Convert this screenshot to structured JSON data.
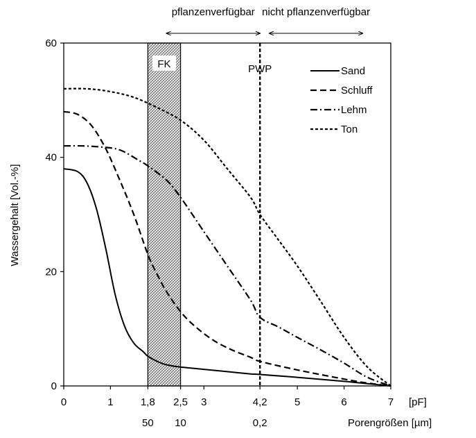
{
  "chart_data": {
    "type": "line",
    "xlabel": "[pF]",
    "x2label": "Porengrößen [µm]",
    "ylabel": "Wassergehalt [Vol.-%]",
    "xlim": [
      0,
      7
    ],
    "ylim": [
      0,
      60
    ],
    "x_ticks": [
      "0",
      "1",
      "1,8",
      "2,5",
      "3",
      "4,2",
      "5",
      "6",
      "7"
    ],
    "x_tick_values": [
      0,
      1,
      1.8,
      2.5,
      3,
      4.2,
      5,
      6,
      7
    ],
    "y_ticks": [
      "0",
      "20",
      "40",
      "60"
    ],
    "y_tick_values": [
      0,
      20,
      40,
      60
    ],
    "pore_ticks": [
      {
        "at": 1.8,
        "label": "50"
      },
      {
        "at": 2.5,
        "label": "10"
      },
      {
        "at": 4.2,
        "label": "0,2"
      }
    ],
    "fk_band": {
      "from": 1.8,
      "to": 2.5,
      "label": "FK"
    },
    "pwp_line": {
      "at": 4.2,
      "label": "PWP"
    },
    "arrows": [
      {
        "from": 2.2,
        "to": 4.2,
        "label": "pflanzenverfügbar"
      },
      {
        "from": 4.4,
        "to": 6.4,
        "label": "nicht pflanzenverfügbar"
      }
    ],
    "legend_position": "top-right",
    "series": [
      {
        "name": "Sand",
        "style": "solid",
        "x": [
          0,
          0.3,
          0.5,
          0.7,
          0.9,
          1.1,
          1.3,
          1.5,
          1.7,
          1.8,
          2.0,
          2.2,
          2.5,
          3.0,
          3.5,
          4.0,
          4.2,
          5.0,
          6.0,
          6.5,
          7.0
        ],
        "y": [
          38,
          37.5,
          35.5,
          31,
          24,
          16,
          10.5,
          7.5,
          6,
          5.2,
          4.3,
          3.7,
          3.3,
          2.9,
          2.5,
          2.1,
          2.0,
          1.5,
          0.8,
          0.4,
          0
        ]
      },
      {
        "name": "Schluff",
        "style": "dashed",
        "x": [
          0,
          0.3,
          0.6,
          0.9,
          1.2,
          1.5,
          1.8,
          2.0,
          2.2,
          2.5,
          2.8,
          3.2,
          3.6,
          4.0,
          4.2,
          5.0,
          6.0,
          6.5,
          7.0
        ],
        "y": [
          48,
          47.5,
          45.5,
          41.5,
          36,
          30,
          23,
          19.5,
          16.5,
          13,
          10.5,
          8,
          6.3,
          5,
          4.3,
          2.8,
          1.2,
          0.5,
          0
        ]
      },
      {
        "name": "Lehm",
        "style": "dashdot",
        "x": [
          0,
          0.4,
          0.8,
          1.2,
          1.6,
          1.8,
          2.2,
          2.5,
          3.0,
          3.5,
          4.0,
          4.2,
          4.6,
          5.0,
          5.5,
          6.0,
          6.5,
          7.0
        ],
        "y": [
          42,
          42,
          41.8,
          41.3,
          39.5,
          38.5,
          36,
          33,
          27,
          21,
          15,
          12,
          10.3,
          8.5,
          6.3,
          4,
          1.5,
          0
        ]
      },
      {
        "name": "Ton",
        "style": "dotted",
        "x": [
          0,
          0.5,
          1.0,
          1.5,
          2.0,
          2.5,
          3.0,
          3.5,
          4.0,
          4.2,
          4.6,
          5.0,
          5.5,
          6.0,
          6.5,
          7.0
        ],
        "y": [
          52,
          52,
          51.5,
          50.5,
          48.7,
          46.5,
          43,
          38,
          33,
          30,
          25.5,
          21,
          14.8,
          8.5,
          3.3,
          0
        ]
      }
    ]
  }
}
